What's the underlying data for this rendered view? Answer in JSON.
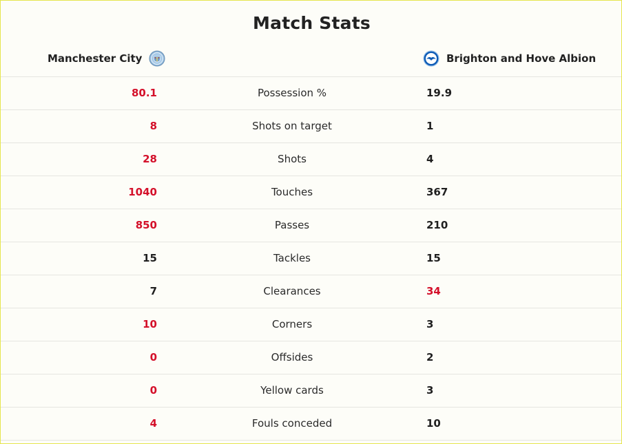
{
  "title": "Match Stats",
  "colors": {
    "highlight": "#d4102a",
    "normal": "#1f1f1f",
    "border": "#e6e64d",
    "background": "#fdfdf8"
  },
  "teams": {
    "home": {
      "name": "Manchester City",
      "crest_icon": "man-city-crest-icon"
    },
    "away": {
      "name": "Brighton and Hove Albion",
      "crest_icon": "brighton-crest-icon"
    }
  },
  "stats": [
    {
      "label": "Possession %",
      "home": "80.1",
      "away": "19.9",
      "leader": "home"
    },
    {
      "label": "Shots on target",
      "home": "8",
      "away": "1",
      "leader": "home"
    },
    {
      "label": "Shots",
      "home": "28",
      "away": "4",
      "leader": "home"
    },
    {
      "label": "Touches",
      "home": "1040",
      "away": "367",
      "leader": "home"
    },
    {
      "label": "Passes",
      "home": "850",
      "away": "210",
      "leader": "home"
    },
    {
      "label": "Tackles",
      "home": "15",
      "away": "15",
      "leader": "none"
    },
    {
      "label": "Clearances",
      "home": "7",
      "away": "34",
      "leader": "away"
    },
    {
      "label": "Corners",
      "home": "10",
      "away": "3",
      "leader": "home"
    },
    {
      "label": "Offsides",
      "home": "0",
      "away": "2",
      "leader": "home"
    },
    {
      "label": "Yellow cards",
      "home": "0",
      "away": "3",
      "leader": "home"
    },
    {
      "label": "Fouls conceded",
      "home": "4",
      "away": "10",
      "leader": "home"
    }
  ]
}
